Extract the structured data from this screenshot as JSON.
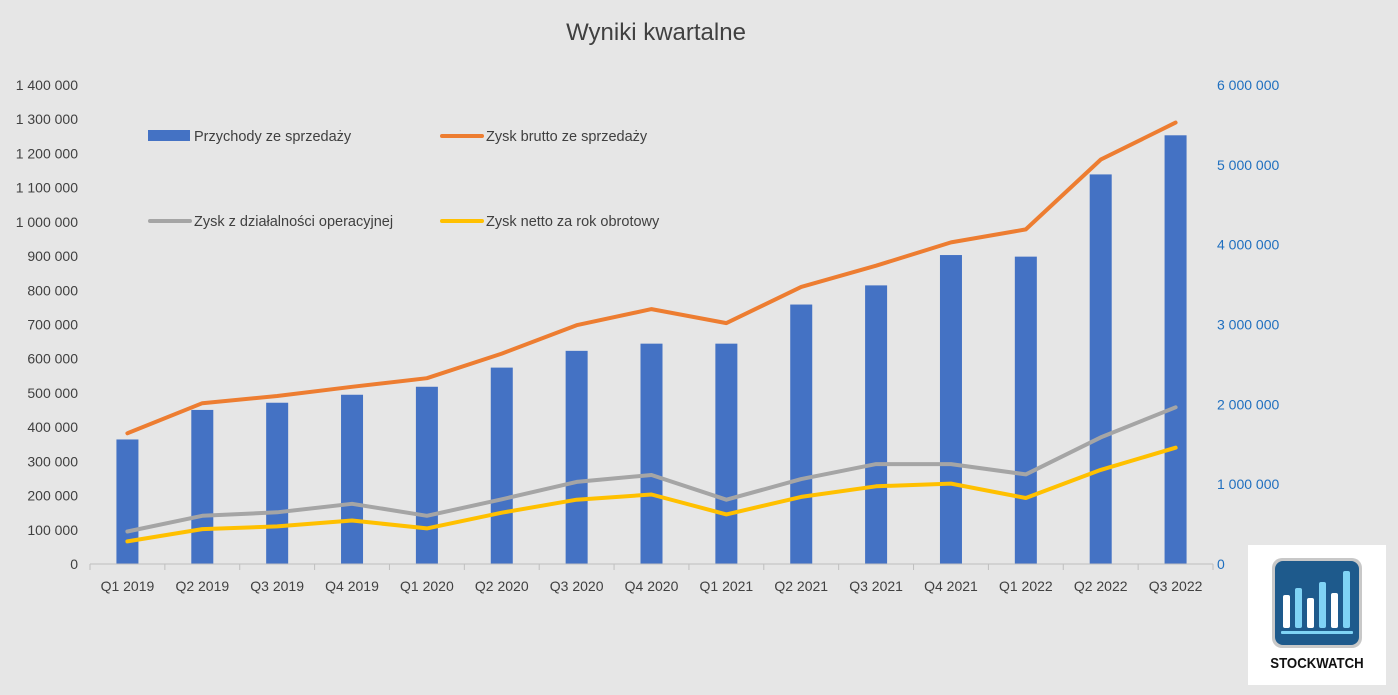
{
  "chart_data": {
    "type": "bar",
    "title": "Wyniki kwartalne",
    "categories": [
      "Q1 2019",
      "Q2 2019",
      "Q3 2019",
      "Q4 2019",
      "Q1 2020",
      "Q2 2020",
      "Q3 2020",
      "Q4 2020",
      "Q1 2021",
      "Q2 2021",
      "Q3 2021",
      "Q4 2021",
      "Q1 2022",
      "Q2 2022",
      "Q3 2022"
    ],
    "left_axis": {
      "ylim": [
        0,
        1400000
      ],
      "ticks": [
        "0",
        "100 000",
        "200 000",
        "300 000",
        "400 000",
        "500 000",
        "600 000",
        "700 000",
        "800 000",
        "900 000",
        "1 000 000",
        "1 100 000",
        "1 200 000",
        "1 300 000",
        "1 400 000"
      ]
    },
    "right_axis": {
      "ylim": [
        0,
        6000000
      ],
      "ticks": [
        "0",
        "1 000 000",
        "2 000 000",
        "3 000 000",
        "4 000 000",
        "5 000 000",
        "6 000 000"
      ],
      "color": "#1f6fbf"
    },
    "series": [
      {
        "name": "Przychody ze sprzedaży",
        "kind": "bar",
        "axis": "right",
        "color": "#4472c4",
        "values": [
          1560000,
          1930000,
          2020000,
          2120000,
          2220000,
          2460000,
          2670000,
          2760000,
          2760000,
          3250000,
          3490000,
          3870000,
          3850000,
          4880000,
          5370000
        ]
      },
      {
        "name": "Zysk brutto ze sprzedaży",
        "kind": "line",
        "axis": "left",
        "color": "#ed7d31",
        "values": [
          382000,
          470000,
          491000,
          518000,
          543000,
          615000,
          698000,
          745000,
          704000,
          810000,
          872000,
          940000,
          978000,
          1182000,
          1290000
        ]
      },
      {
        "name": "Zysk z działalności operacyjnej",
        "kind": "line",
        "axis": "left",
        "color": "#a5a5a5",
        "values": [
          95000,
          141000,
          151000,
          176000,
          141000,
          189000,
          240000,
          260000,
          188000,
          248000,
          292000,
          292000,
          262000,
          370000,
          458000
        ]
      },
      {
        "name": "Zysk netto za rok obrotowy",
        "kind": "line",
        "axis": "left",
        "color": "#ffc000",
        "values": [
          66000,
          102000,
          110000,
          127000,
          104000,
          150000,
          188000,
          203000,
          145000,
          196000,
          227000,
          235000,
          193000,
          275000,
          340000
        ]
      }
    ],
    "legend_position": "top-left",
    "grid": false
  },
  "logo": {
    "name": "stockwatch-logo",
    "text": "STOCKWATCH"
  }
}
